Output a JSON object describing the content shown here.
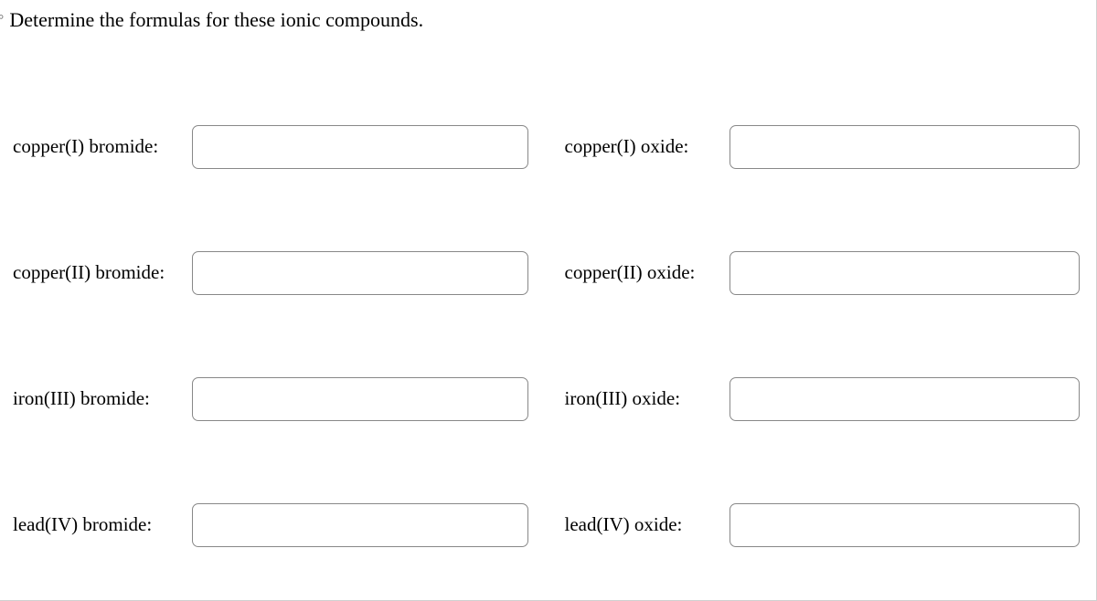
{
  "prompt": "Determine the formulas for these ionic compounds.",
  "fields": {
    "r1c1": {
      "label": "copper(I) bromide:",
      "value": ""
    },
    "r1c2": {
      "label": "copper(I) oxide:",
      "value": ""
    },
    "r2c1": {
      "label": "copper(II) bromide:",
      "value": ""
    },
    "r2c2": {
      "label": "copper(II) oxide:",
      "value": ""
    },
    "r3c1": {
      "label": "iron(III) bromide:",
      "value": ""
    },
    "r3c2": {
      "label": "iron(III) oxide:",
      "value": ""
    },
    "r4c1": {
      "label": "lead(IV) bromide:",
      "value": ""
    },
    "r4c2": {
      "label": "lead(IV) oxide:",
      "value": ""
    }
  },
  "style": {
    "background_color": "#ffffff",
    "border_color": "#d0d0d0",
    "input_border_color": "#888888",
    "input_border_radius": 7,
    "text_color": "#000000",
    "font_family": "Georgia, Times New Roman, serif",
    "prompt_fontsize": 22,
    "label_fontsize": 21
  }
}
